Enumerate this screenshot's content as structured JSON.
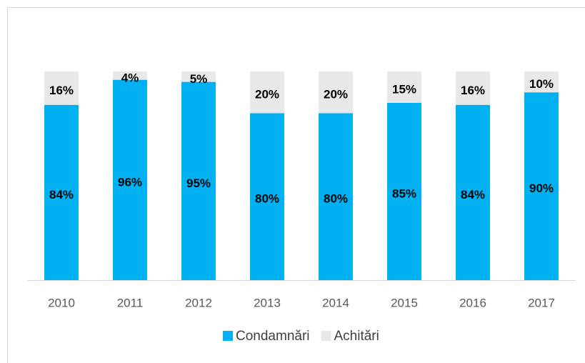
{
  "chart_data": {
    "type": "stacked_bar",
    "categories": [
      "2010",
      "2011",
      "2012",
      "2013",
      "2014",
      "2015",
      "2016",
      "2017"
    ],
    "series": [
      {
        "name": "Condamnări",
        "color": "#00b0f0",
        "values": [
          84,
          96,
          95,
          80,
          80,
          85,
          84,
          90
        ],
        "value_labels": [
          "84%",
          "96%",
          "95%",
          "80%",
          "80%",
          "85%",
          "84%",
          "90%"
        ]
      },
      {
        "name": "Achitări",
        "color": "#e8e8e8",
        "values": [
          16,
          4,
          5,
          20,
          20,
          15,
          16,
          10
        ],
        "value_labels": [
          "16%",
          "4%",
          "5%",
          "20%",
          "20%",
          "15%",
          "16%",
          "10%"
        ]
      }
    ],
    "ylim": [
      0,
      100
    ],
    "legend": "bottom"
  }
}
